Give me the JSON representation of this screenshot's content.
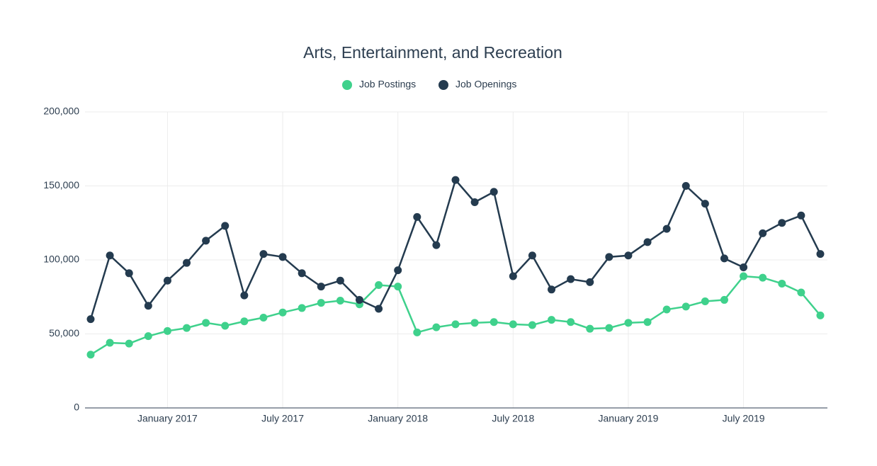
{
  "chart_data": {
    "type": "line",
    "title": "Arts, Entertainment, and Recreation",
    "categories": [
      null,
      null,
      null,
      null,
      "January 2017",
      null,
      null,
      null,
      null,
      null,
      "July 2017",
      null,
      null,
      null,
      null,
      null,
      "January 2018",
      null,
      null,
      null,
      null,
      null,
      "July 2018",
      null,
      null,
      null,
      null,
      null,
      "January 2019",
      null,
      null,
      null,
      null,
      null,
      "July 2019",
      null,
      null,
      null,
      null
    ],
    "series": [
      {
        "name": "Job Postings",
        "color": "#3fd18c",
        "values": [
          36000,
          44000,
          43500,
          48500,
          52000,
          54000,
          57500,
          55500,
          58500,
          61000,
          64500,
          67500,
          71000,
          72500,
          70000,
          83000,
          82000,
          51000,
          54500,
          56500,
          57500,
          58000,
          56500,
          56000,
          59500,
          58000,
          53500,
          54000,
          57500,
          58000,
          66500,
          68500,
          72000,
          73000,
          89000,
          88000,
          84000,
          78000,
          62500
        ]
      },
      {
        "name": "Job Openings",
        "color": "#243b4f",
        "values": [
          60000,
          103000,
          91000,
          69000,
          86000,
          98000,
          113000,
          123000,
          76000,
          104000,
          102000,
          91000,
          82000,
          86000,
          73000,
          67000,
          93000,
          129000,
          110000,
          154000,
          139000,
          146000,
          89000,
          103000,
          80000,
          87000,
          85000,
          102000,
          103000,
          112000,
          121000,
          150000,
          138000,
          101000,
          95000,
          118000,
          125000,
          130000,
          104000
        ]
      }
    ],
    "ylim": [
      0,
      200000
    ],
    "yticks": [
      0,
      {
        "value": 50000,
        "label": "50,000"
      },
      {
        "value": 100000,
        "label": "100,000"
      },
      {
        "value": 150000,
        "label": "150,000"
      },
      {
        "value": 200000,
        "label": "200,000"
      }
    ],
    "grid": true,
    "legend": "top"
  }
}
